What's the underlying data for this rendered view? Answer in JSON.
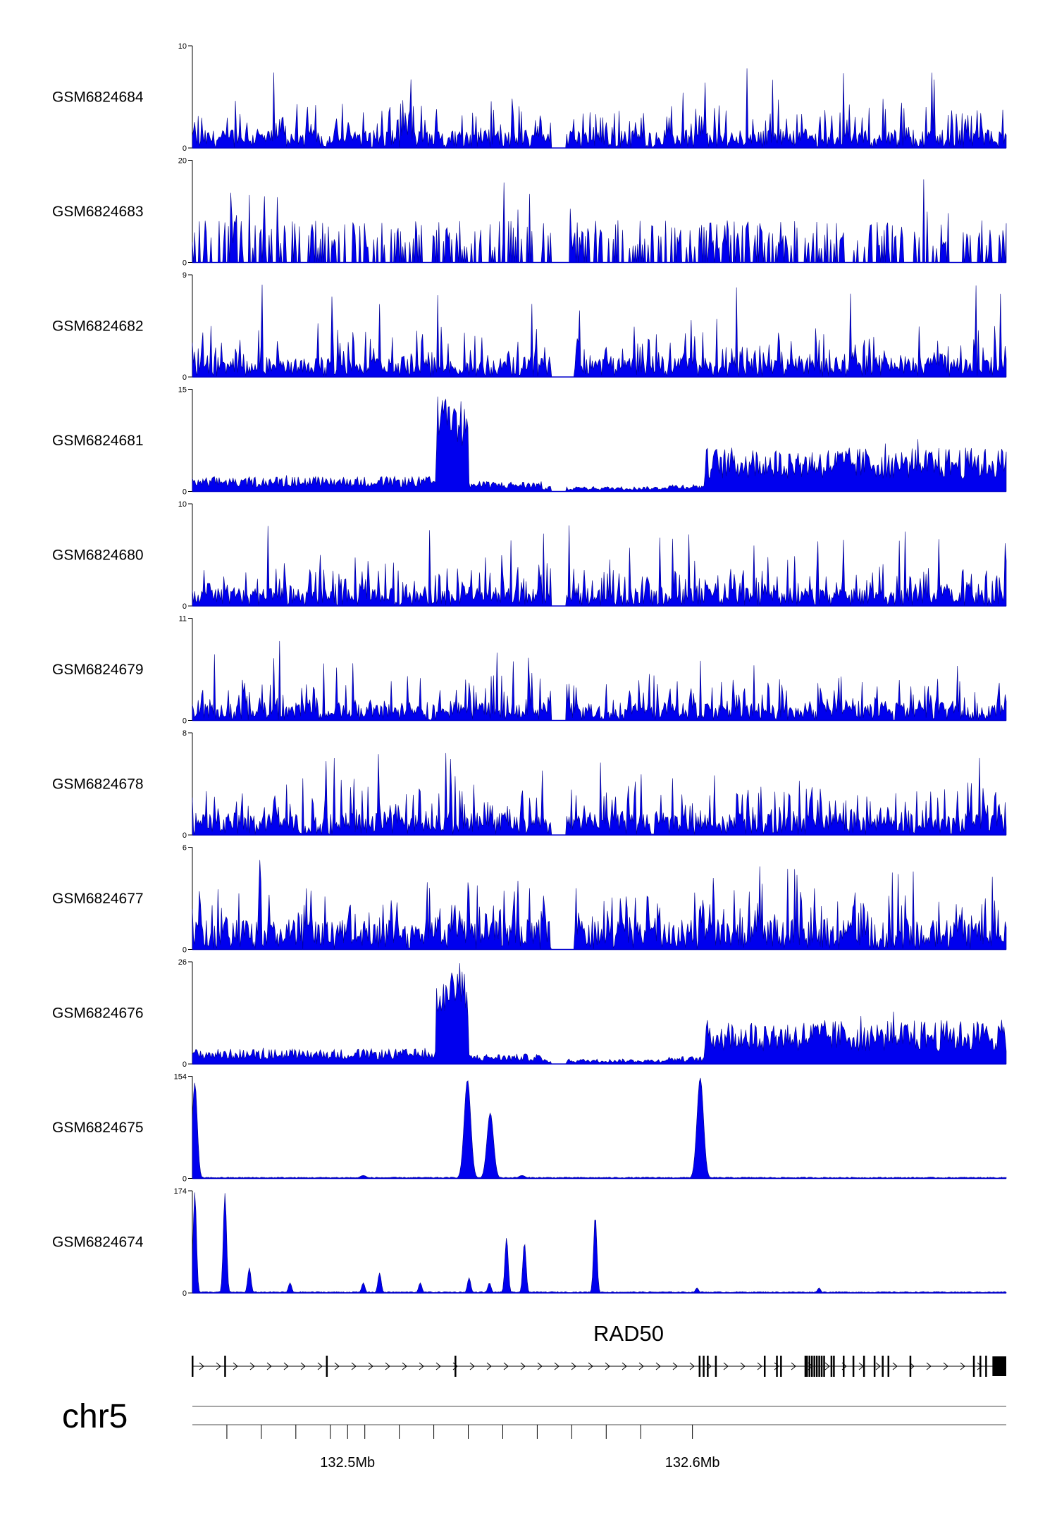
{
  "chart_data": {
    "type": "area",
    "title": "",
    "chromosome": "chr5",
    "gene": "RAD50",
    "xlabel": "",
    "xlim_mb": [
      132.455,
      132.691
    ],
    "x_ticks_mb": [
      132.465,
      132.475,
      132.485,
      132.495,
      132.505,
      132.515,
      132.525,
      132.535,
      132.545,
      132.555,
      132.565,
      132.575,
      132.585
    ],
    "x_tick_labels": [
      {
        "value": 132.5,
        "label": "132.5Mb"
      },
      {
        "value": 132.6,
        "label": "132.6Mb"
      }
    ],
    "tracks": [
      {
        "name": "GSM6824684",
        "ymax": 10,
        "ymin": 0,
        "ymax_label": "10",
        "ymin_label": "0",
        "pattern": "noise",
        "base": 0.18,
        "spread": 0.32,
        "spike": 0.85,
        "gap": [
          0.44,
          0.46
        ]
      },
      {
        "name": "GSM6824683",
        "ymax": 20,
        "ymin": 0,
        "ymax_label": "20",
        "ymin_label": "0",
        "pattern": "sparse",
        "base": 0.12,
        "spread": 0.3,
        "spike": 0.85,
        "gap": [
          0.44,
          0.46
        ]
      },
      {
        "name": "GSM6824682",
        "ymax": 9,
        "ymin": 0,
        "ymax_label": "9",
        "ymin_label": "0",
        "pattern": "noise",
        "base": 0.2,
        "spread": 0.32,
        "spike": 0.95,
        "gap": [
          0.44,
          0.47
        ]
      },
      {
        "name": "GSM6824681",
        "ymax": 15,
        "ymin": 0,
        "ymax_label": "15",
        "ymin_label": "0",
        "pattern": "domain",
        "base": 0.1,
        "spread": 0.1,
        "spike": 0.3,
        "gap": [
          0.44,
          0.46
        ]
      },
      {
        "name": "GSM6824680",
        "ymax": 10,
        "ymin": 0,
        "ymax_label": "10",
        "ymin_label": "0",
        "pattern": "noise",
        "base": 0.18,
        "spread": 0.3,
        "spike": 0.8,
        "gap": [
          0.44,
          0.46
        ]
      },
      {
        "name": "GSM6824679",
        "ymax": 11,
        "ymin": 0,
        "ymax_label": "11",
        "ymin_label": "0",
        "pattern": "noise",
        "base": 0.18,
        "spread": 0.3,
        "spike": 0.85,
        "gap": [
          0.44,
          0.46
        ]
      },
      {
        "name": "GSM6824678",
        "ymax": 8,
        "ymin": 0,
        "ymax_label": "8",
        "ymin_label": "0",
        "pattern": "noise",
        "base": 0.22,
        "spread": 0.35,
        "spike": 0.85,
        "gap": [
          0.44,
          0.46
        ]
      },
      {
        "name": "GSM6824677",
        "ymax": 6,
        "ymin": 0,
        "ymax_label": "6",
        "ymin_label": "0",
        "pattern": "noise",
        "base": 0.3,
        "spread": 0.42,
        "spike": 0.9,
        "gap": [
          0.44,
          0.47
        ]
      },
      {
        "name": "GSM6824676",
        "ymax": 26,
        "ymin": 0,
        "ymax_label": "26",
        "ymin_label": "0",
        "pattern": "domain",
        "base": 0.1,
        "spread": 0.1,
        "spike": 0.3,
        "gap": [
          0.44,
          0.46
        ]
      },
      {
        "name": "GSM6824675",
        "ymax": 154,
        "ymin": 0,
        "ymax_label": "154",
        "ymin_label": "0",
        "pattern": "peaks",
        "peaks": [
          [
            0.003,
            0.95,
            0.003
          ],
          [
            0.338,
            0.98,
            0.004
          ],
          [
            0.366,
            0.65,
            0.004
          ],
          [
            0.624,
            1.0,
            0.004
          ],
          [
            0.21,
            0.03,
            0.004
          ],
          [
            0.405,
            0.03,
            0.004
          ]
        ]
      },
      {
        "name": "GSM6824674",
        "ymax": 174,
        "ymin": 0,
        "ymax_label": "174",
        "ymin_label": "0",
        "pattern": "peaks",
        "peaks": [
          [
            0.003,
            1.0,
            0.002
          ],
          [
            0.04,
            0.99,
            0.002
          ],
          [
            0.07,
            0.25,
            0.002
          ],
          [
            0.12,
            0.1,
            0.002
          ],
          [
            0.21,
            0.1,
            0.002
          ],
          [
            0.23,
            0.2,
            0.002
          ],
          [
            0.28,
            0.1,
            0.002
          ],
          [
            0.34,
            0.15,
            0.002
          ],
          [
            0.365,
            0.1,
            0.002
          ],
          [
            0.386,
            0.55,
            0.002
          ],
          [
            0.408,
            0.5,
            0.002
          ],
          [
            0.495,
            0.77,
            0.002
          ],
          [
            0.62,
            0.05,
            0.002
          ],
          [
            0.77,
            0.05,
            0.002
          ]
        ]
      }
    ],
    "gene_model": {
      "name": "RAD50",
      "strand": "+",
      "exons": [
        0.0,
        0.04,
        0.165,
        0.323,
        0.623,
        0.628,
        0.633,
        0.643,
        0.703,
        0.718,
        0.723,
        0.753,
        0.755,
        0.758,
        0.761,
        0.764,
        0.767,
        0.77,
        0.773,
        0.776,
        0.785,
        0.788,
        0.8,
        0.812,
        0.825,
        0.838,
        0.848,
        0.855,
        0.882,
        0.96,
        0.968,
        0.975
      ],
      "last_exon": [
        0.983,
        1.0
      ]
    }
  }
}
